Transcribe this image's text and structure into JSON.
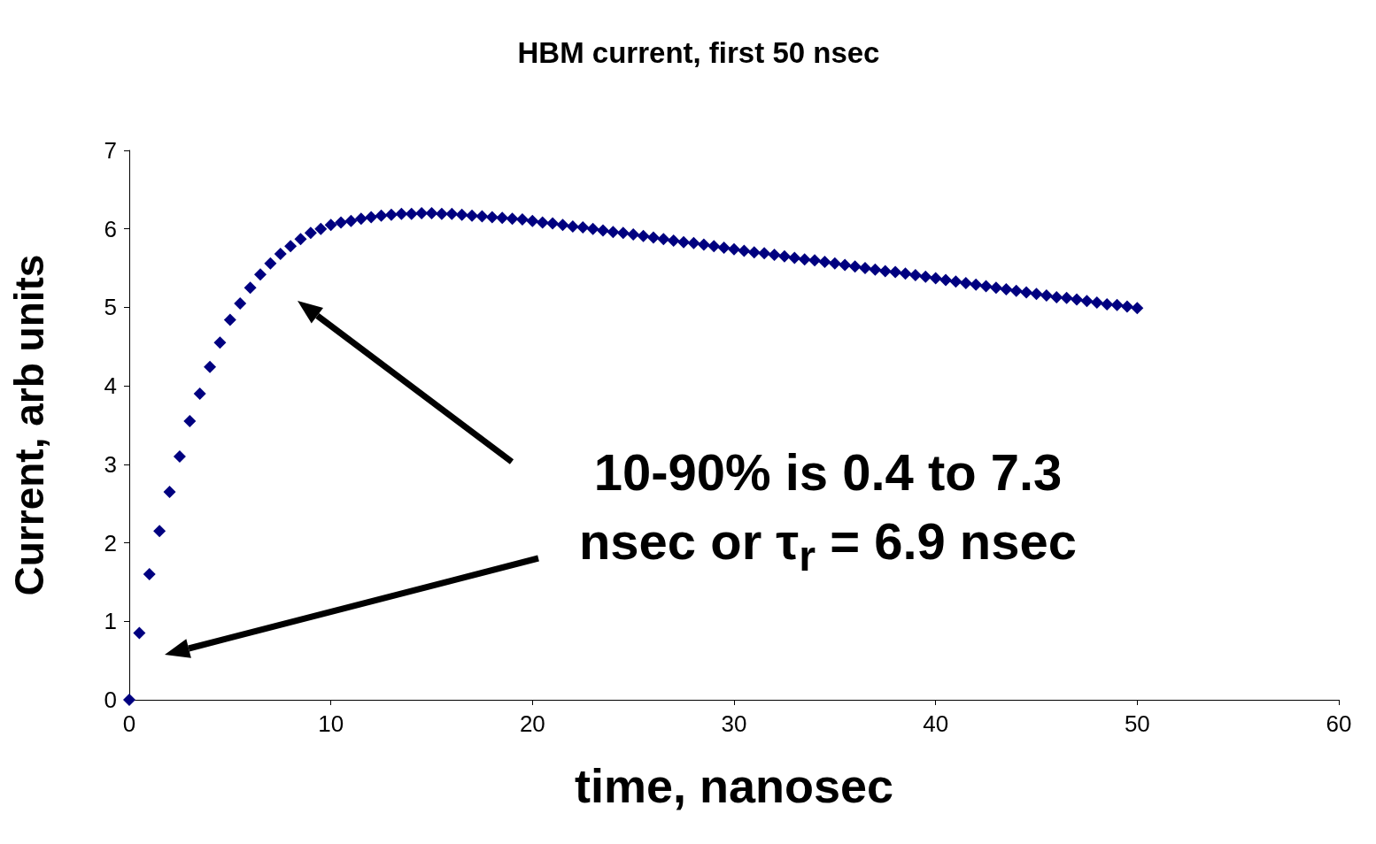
{
  "chart_data": {
    "type": "scatter",
    "title": "HBM current, first 50 nsec",
    "xlabel": "time, nanosec",
    "ylabel": "Current, arb units",
    "annotations": [
      "10-90% is 0.4 to 7.3 nsec or τ$_{r}$ = 6.9 nsec"
    ],
    "marker": "diamond",
    "grid": false,
    "xlim": [
      0,
      60
    ],
    "xticks": [
      0,
      10,
      20,
      30,
      40,
      50,
      60
    ],
    "ylim": [
      0,
      7
    ],
    "yticks": [
      0,
      1,
      2,
      3,
      4,
      5,
      6,
      7
    ],
    "x": [
      0,
      0.5,
      1,
      1.5,
      2,
      2.5,
      3,
      3.5,
      4,
      4.5,
      5,
      5.5,
      6,
      6.5,
      7,
      7.5,
      8,
      8.5,
      9,
      9.5,
      10,
      10.5,
      11,
      11.5,
      12,
      12.5,
      13,
      13.5,
      14,
      14.5,
      15,
      15.5,
      16,
      16.5,
      17,
      17.5,
      18,
      18.5,
      19,
      19.5,
      20,
      20.5,
      21,
      21.5,
      22,
      22.5,
      23,
      23.5,
      24,
      24.5,
      25,
      25.5,
      26,
      26.5,
      27,
      27.5,
      28,
      28.5,
      29,
      29.5,
      30,
      30.5,
      31,
      31.5,
      32,
      32.5,
      33,
      33.5,
      34,
      34.5,
      35,
      35.5,
      36,
      36.5,
      37,
      37.5,
      38,
      38.5,
      39,
      39.5,
      40,
      40.5,
      41,
      41.5,
      42,
      42.5,
      43,
      43.5,
      44,
      44.5,
      45,
      45.5,
      46,
      46.5,
      47,
      47.5,
      48,
      48.5,
      49,
      49.5,
      50
    ],
    "series": [
      {
        "color": "#000080",
        "values": [
          0,
          0.85,
          1.6,
          2.15,
          2.65,
          3.1,
          3.55,
          3.9,
          4.24,
          4.55,
          4.84,
          5.05,
          5.25,
          5.42,
          5.56,
          5.68,
          5.78,
          5.87,
          5.95,
          6.0,
          6.05,
          6.08,
          6.1,
          6.13,
          6.15,
          6.17,
          6.18,
          6.19,
          6.19,
          6.2,
          6.2,
          6.19,
          6.19,
          6.18,
          6.17,
          6.16,
          6.15,
          6.14,
          6.13,
          6.12,
          6.1,
          6.08,
          6.07,
          6.05,
          6.03,
          6.02,
          6.0,
          5.98,
          5.96,
          5.95,
          5.93,
          5.91,
          5.89,
          5.87,
          5.85,
          5.83,
          5.82,
          5.8,
          5.78,
          5.76,
          5.74,
          5.72,
          5.7,
          5.69,
          5.67,
          5.65,
          5.63,
          5.61,
          5.6,
          5.58,
          5.56,
          5.54,
          5.52,
          5.5,
          5.48,
          5.46,
          5.45,
          5.43,
          5.41,
          5.39,
          5.37,
          5.35,
          5.33,
          5.31,
          5.29,
          5.27,
          5.25,
          5.23,
          5.21,
          5.19,
          5.17,
          5.15,
          5.13,
          5.12,
          5.1,
          5.08,
          5.06,
          5.04,
          5.03,
          5.01,
          4.99
        ]
      }
    ]
  }
}
